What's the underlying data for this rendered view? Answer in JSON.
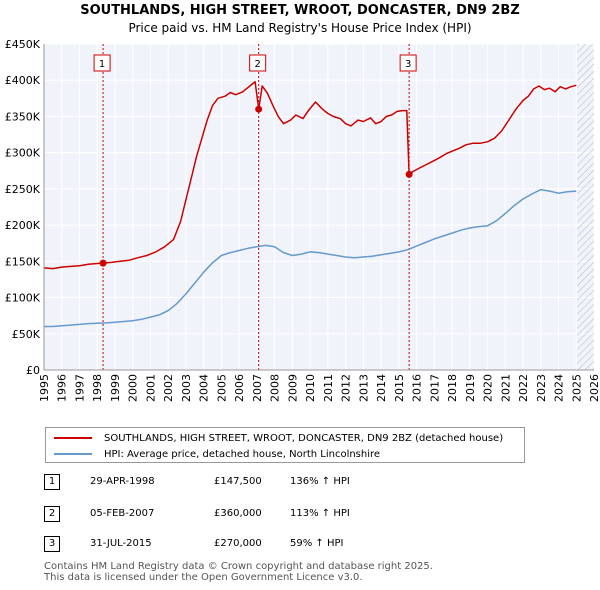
{
  "chart_data": {
    "type": "line",
    "title": "SOUTHLANDS, HIGH STREET, WROOT, DONCASTER, DN9 2BZ",
    "subtitle": "Price paid vs. HM Land Registry's House Price Index (HPI)",
    "xlim": [
      1995,
      2026
    ],
    "ylim": [
      0,
      450000
    ],
    "x_ticks": [
      "1995",
      "1996",
      "1997",
      "1998",
      "1999",
      "2000",
      "2001",
      "2002",
      "2003",
      "2004",
      "2005",
      "2006",
      "2007",
      "2008",
      "2009",
      "2010",
      "2011",
      "2012",
      "2013",
      "2014",
      "2015",
      "2016",
      "2017",
      "2018",
      "2019",
      "2020",
      "2021",
      "2022",
      "2023",
      "2024",
      "2025",
      "2026"
    ],
    "y_ticks": [
      {
        "value": 0,
        "label": "£0"
      },
      {
        "value": 50000,
        "label": "£50K"
      },
      {
        "value": 100000,
        "label": "£100K"
      },
      {
        "value": 150000,
        "label": "£150K"
      },
      {
        "value": 200000,
        "label": "£200K"
      },
      {
        "value": 250000,
        "label": "£250K"
      },
      {
        "value": 300000,
        "label": "£300K"
      },
      {
        "value": 350000,
        "label": "£350K"
      },
      {
        "value": 400000,
        "label": "£400K"
      },
      {
        "value": 450000,
        "label": "£450K"
      }
    ],
    "grid": true,
    "series": [
      {
        "name": "SOUTHLANDS, HIGH STREET, WROOT, DONCASTER, DN9 2BZ (detached house)",
        "color": "#cc0000",
        "x": [
          1995.0,
          1995.5,
          1996.0,
          1996.5,
          1997.0,
          1997.5,
          1998.0,
          1998.33,
          1998.8,
          1999.3,
          1999.8,
          2000.3,
          2000.8,
          2001.3,
          2001.8,
          2002.3,
          2002.7,
          2003.0,
          2003.3,
          2003.6,
          2003.9,
          2004.2,
          2004.5,
          2004.8,
          2005.2,
          2005.5,
          2005.8,
          2006.2,
          2006.6,
          2006.9,
          2007.1,
          2007.3,
          2007.6,
          2007.9,
          2008.2,
          2008.5,
          2008.9,
          2009.2,
          2009.6,
          2009.9,
          2010.3,
          2010.7,
          2011.0,
          2011.3,
          2011.7,
          2012.0,
          2012.3,
          2012.7,
          2013.0,
          2013.4,
          2013.7,
          2014.0,
          2014.3,
          2014.6,
          2014.9,
          2015.2,
          2015.45,
          2015.58,
          2015.8,
          2016.1,
          2016.5,
          2016.9,
          2017.3,
          2017.7,
          2018.0,
          2018.4,
          2018.8,
          2019.2,
          2019.6,
          2020.0,
          2020.4,
          2020.8,
          2021.2,
          2021.6,
          2022.0,
          2022.3,
          2022.6,
          2022.9,
          2023.2,
          2023.5,
          2023.8,
          2024.1,
          2024.4,
          2024.7,
          2025.0
        ],
        "values": [
          141000,
          140000,
          142000,
          143000,
          144000,
          146000,
          147000,
          147500,
          148500,
          150000,
          151500,
          155000,
          158000,
          163000,
          170000,
          180000,
          205000,
          235000,
          265000,
          295000,
          320000,
          345000,
          365000,
          375000,
          378000,
          383000,
          380000,
          384000,
          392000,
          398000,
          360000,
          392000,
          382000,
          365000,
          350000,
          340000,
          345000,
          352000,
          347000,
          358000,
          370000,
          360000,
          354000,
          350000,
          347000,
          340000,
          337000,
          345000,
          343000,
          348000,
          340000,
          343000,
          350000,
          352000,
          357000,
          358000,
          358000,
          270000,
          274000,
          278000,
          283000,
          288000,
          293000,
          299000,
          302000,
          306000,
          311000,
          313000,
          313000,
          315000,
          320000,
          330000,
          345000,
          360000,
          372000,
          378000,
          388000,
          392000,
          387000,
          389000,
          384000,
          391000,
          388000,
          391000,
          393000
        ]
      },
      {
        "name": "HPI: Average price, detached house, North Lincolnshire",
        "color": "#6699cc",
        "x": [
          1995.0,
          1995.5,
          1996.0,
          1996.5,
          1997.0,
          1997.5,
          1998.0,
          1998.5,
          1999.0,
          1999.5,
          2000.0,
          2000.5,
          2001.0,
          2001.5,
          2002.0,
          2002.5,
          2003.0,
          2003.5,
          2004.0,
          2004.5,
          2005.0,
          2005.5,
          2006.0,
          2006.5,
          2007.0,
          2007.5,
          2008.0,
          2008.5,
          2009.0,
          2009.5,
          2010.0,
          2010.5,
          2011.0,
          2011.5,
          2012.0,
          2012.5,
          2013.0,
          2013.5,
          2014.0,
          2014.5,
          2015.0,
          2015.5,
          2016.0,
          2016.5,
          2017.0,
          2017.5,
          2018.0,
          2018.5,
          2019.0,
          2019.5,
          2020.0,
          2020.5,
          2021.0,
          2021.5,
          2022.0,
          2022.5,
          2023.0,
          2023.5,
          2024.0,
          2024.5,
          2025.0
        ],
        "values": [
          60000,
          60000,
          61000,
          62000,
          63000,
          64000,
          64500,
          65000,
          66000,
          67000,
          68000,
          70000,
          73000,
          76000,
          82000,
          92000,
          105000,
          120000,
          135000,
          148000,
          158000,
          162000,
          165000,
          168000,
          170000,
          172000,
          170000,
          162000,
          158000,
          160000,
          163000,
          162000,
          160000,
          158000,
          156000,
          155000,
          156000,
          157000,
          159000,
          161000,
          163000,
          166000,
          171000,
          176000,
          181000,
          185000,
          189000,
          193000,
          196000,
          198000,
          199000,
          206000,
          216000,
          227000,
          236000,
          243000,
          249000,
          247000,
          244000,
          246000,
          247000
        ]
      }
    ],
    "markers": [
      {
        "label": "1",
        "x": 1998.33,
        "price": 147500
      },
      {
        "label": "2",
        "x": 2007.1,
        "price": 360000
      },
      {
        "label": "3",
        "x": 2015.58,
        "price": 270000
      }
    ]
  },
  "legend": {
    "property": "SOUTHLANDS, HIGH STREET, WROOT, DONCASTER, DN9 2BZ (detached house)",
    "hpi": "HPI: Average price, detached house, North Lincolnshire",
    "property_color": "#cc0000",
    "hpi_color": "#6699cc"
  },
  "sales": [
    {
      "num": "1",
      "date": "29-APR-1998",
      "price": "£147,500",
      "hpi": "136% ↑ HPI"
    },
    {
      "num": "2",
      "date": "05-FEB-2007",
      "price": "£360,000",
      "hpi": "113% ↑ HPI"
    },
    {
      "num": "3",
      "date": "31-JUL-2015",
      "price": "£270,000",
      "hpi": "59% ↑ HPI"
    }
  ],
  "footer": {
    "line1": "Contains HM Land Registry data © Crown copyright and database right 2025.",
    "line2": "This data is licensed under the Open Government Licence v3.0."
  }
}
